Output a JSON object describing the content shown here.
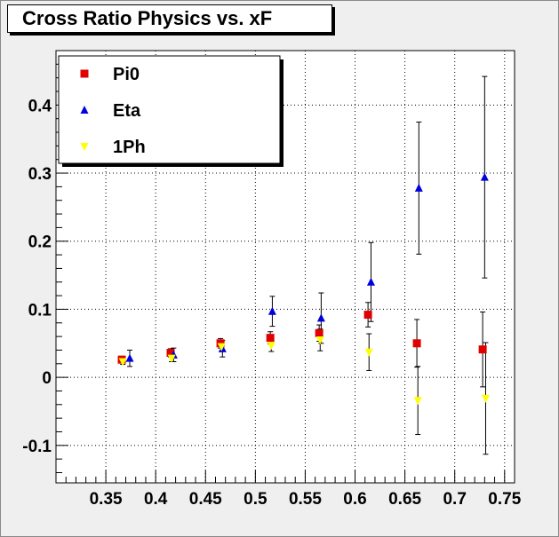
{
  "window": {
    "title": "Cross Ratio Physics vs. xF"
  },
  "chart_data": {
    "type": "scatter",
    "title": "Cross Ratio Physics vs. xF",
    "xlabel": "",
    "ylabel": "",
    "xlim": [
      0.3,
      0.76
    ],
    "ylim": [
      -0.155,
      0.48
    ],
    "x_ticks": [
      0.35,
      0.4,
      0.45,
      0.5,
      0.55,
      0.6,
      0.65,
      0.7,
      0.75
    ],
    "x_tick_labels": [
      "0.35",
      "0.4",
      "0.45",
      "0.5",
      "0.55",
      "0.6",
      "0.65",
      "0.7",
      "0.75"
    ],
    "y_ticks": [
      -0.1,
      0,
      0.1,
      0.2,
      0.3,
      0.4
    ],
    "y_tick_labels": [
      "-0.1",
      "0",
      "0.1",
      "0.2",
      "0.3",
      "0.4"
    ],
    "grid": true,
    "legend_position": "top-left",
    "series": [
      {
        "name": "Pi0",
        "marker": "square",
        "color": "#e00000",
        "points": [
          {
            "x": 0.366,
            "y": 0.026,
            "err": 0.005
          },
          {
            "x": 0.415,
            "y": 0.036,
            "err": 0.006
          },
          {
            "x": 0.465,
            "y": 0.05,
            "err": 0.007
          },
          {
            "x": 0.515,
            "y": 0.058,
            "err": 0.009
          },
          {
            "x": 0.564,
            "y": 0.065,
            "err": 0.012
          },
          {
            "x": 0.613,
            "y": 0.092,
            "err": 0.018
          },
          {
            "x": 0.662,
            "y": 0.05,
            "err": 0.035
          },
          {
            "x": 0.728,
            "y": 0.041,
            "err": 0.055
          }
        ]
      },
      {
        "name": "Eta",
        "marker": "triangle-up",
        "color": "#0000e0",
        "points": [
          {
            "x": 0.374,
            "y": 0.028,
            "err": 0.012
          },
          {
            "x": 0.418,
            "y": 0.033,
            "err": 0.01
          },
          {
            "x": 0.467,
            "y": 0.042,
            "err": 0.012
          },
          {
            "x": 0.517,
            "y": 0.097,
            "err": 0.022
          },
          {
            "x": 0.566,
            "y": 0.087,
            "err": 0.037
          },
          {
            "x": 0.616,
            "y": 0.14,
            "err": 0.058
          },
          {
            "x": 0.664,
            "y": 0.278,
            "err": 0.097
          },
          {
            "x": 0.73,
            "y": 0.294,
            "err": 0.148
          }
        ]
      },
      {
        "name": "1Ph",
        "marker": "triangle-down",
        "color": "#ffff00",
        "points": [
          {
            "x": 0.367,
            "y": 0.023,
            "err": 0.004
          },
          {
            "x": 0.416,
            "y": 0.028,
            "err": 0.005
          },
          {
            "x": 0.466,
            "y": 0.045,
            "err": 0.007
          },
          {
            "x": 0.516,
            "y": 0.047,
            "err": 0.009
          },
          {
            "x": 0.565,
            "y": 0.055,
            "err": 0.016
          },
          {
            "x": 0.614,
            "y": 0.037,
            "err": 0.027
          },
          {
            "x": 0.663,
            "y": -0.034,
            "err": 0.05
          },
          {
            "x": 0.731,
            "y": -0.031,
            "err": 0.082
          }
        ]
      }
    ]
  }
}
